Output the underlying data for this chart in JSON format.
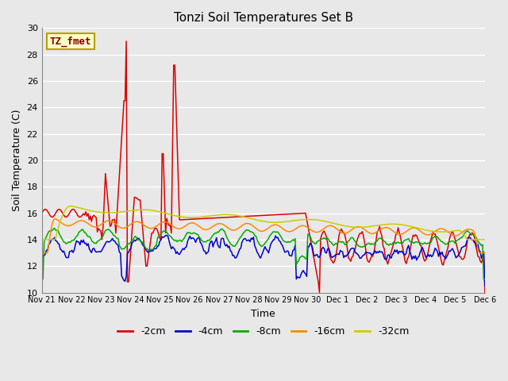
{
  "title": "Tonzi Soil Temperatures Set B",
  "xlabel": "Time",
  "ylabel": "Soil Temperature (C)",
  "ylim": [
    10,
    30
  ],
  "yticks": [
    10,
    12,
    14,
    16,
    18,
    20,
    22,
    24,
    26,
    28,
    30
  ],
  "bg_color": "#e8e8e8",
  "grid_color": "#ffffff",
  "annotation_text": "TZ_fmet",
  "annotation_color": "#8b0000",
  "annotation_bg": "#ffffcc",
  "annotation_border": "#b8a000",
  "colors": {
    "-2cm": "#dd0000",
    "-4cm": "#0000cc",
    "-8cm": "#00aa00",
    "-16cm": "#ff8800",
    "-32cm": "#cccc00"
  },
  "xtick_labels": [
    "Nov 21",
    "Nov 22",
    "Nov 23",
    "Nov 24",
    "Nov 25",
    "Nov 26",
    "Nov 27",
    "Nov 28",
    "Nov 29",
    "Nov 30",
    "Dec 1",
    "Dec 2",
    "Dec 3",
    "Dec 4",
    "Dec 5",
    "Dec 6"
  ],
  "n_ticks": 16,
  "figsize": [
    6.4,
    4.8
  ],
  "dpi": 100
}
